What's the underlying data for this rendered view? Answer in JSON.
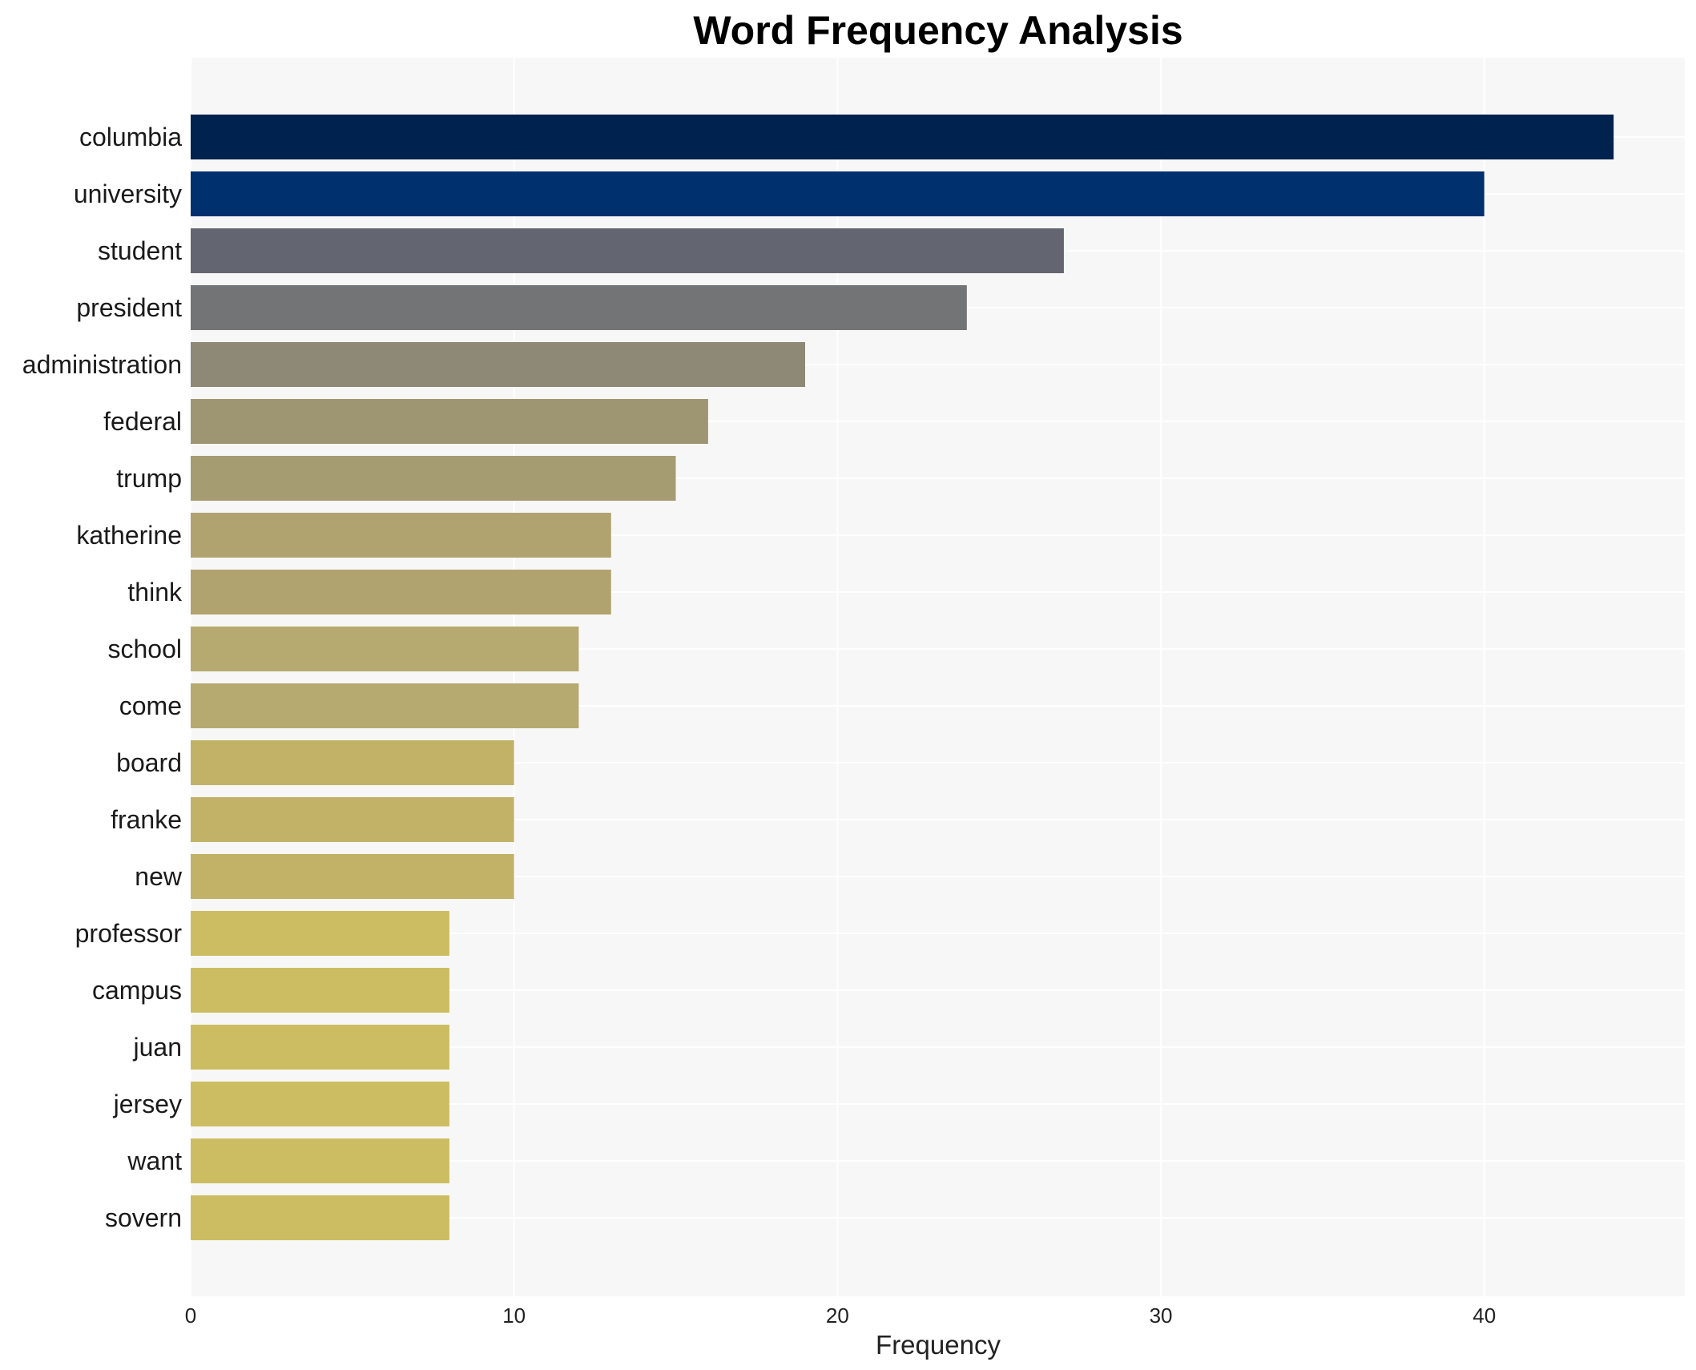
{
  "chart_data": {
    "type": "bar",
    "orientation": "horizontal",
    "title": "Word Frequency Analysis",
    "xlabel": "Frequency",
    "ylabel": "",
    "xlim": [
      0,
      46.2
    ],
    "xticks": [
      0,
      10,
      20,
      30,
      40
    ],
    "grid": true,
    "categories": [
      "columbia",
      "university",
      "student",
      "president",
      "administration",
      "federal",
      "trump",
      "katherine",
      "think",
      "school",
      "come",
      "board",
      "franke",
      "new",
      "professor",
      "campus",
      "juan",
      "jersey",
      "want",
      "sovern"
    ],
    "values": [
      44,
      40,
      27,
      24,
      19,
      16,
      15,
      13,
      13,
      12,
      12,
      10,
      10,
      10,
      8,
      8,
      8,
      8,
      8,
      8
    ],
    "colors": [
      "#00224e",
      "#01306f",
      "#636570",
      "#737475",
      "#8e8877",
      "#9e9573",
      "#a69c72",
      "#b0a36f",
      "#b0a36f",
      "#b6aa70",
      "#b6aa70",
      "#c1b268",
      "#c1b268",
      "#c1b268",
      "#cdbd62",
      "#cdbd62",
      "#cdbd62",
      "#cdbd62",
      "#cdbd62",
      "#cdbd62"
    ]
  }
}
